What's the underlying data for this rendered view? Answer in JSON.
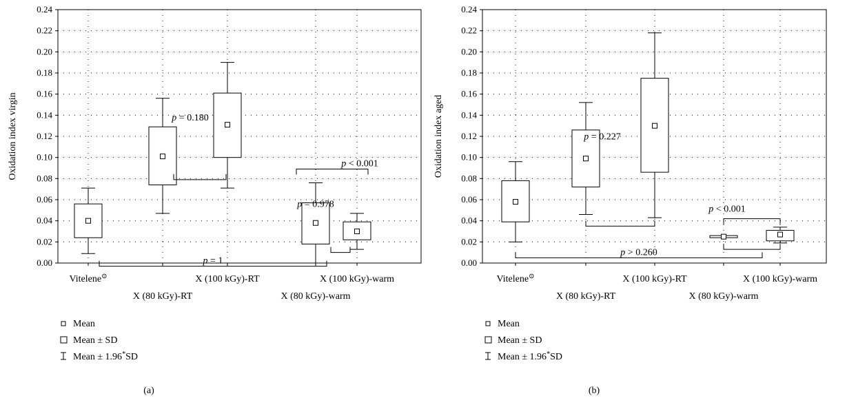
{
  "chart_data": [
    {
      "type": "box",
      "panel_label": "(a)",
      "ylabel": "Oxidation index virgin",
      "ylim": [
        0,
        0.24
      ],
      "ytick_step": 0.02,
      "grid": true,
      "categories": [
        "Vitelene⊙",
        "X (80 kGy)-RT",
        "X (100 kGy)-RT",
        "X (80 kGy)-warm",
        "X (100 kGy)-warm"
      ],
      "category_label_rows": [
        0,
        1,
        0,
        1,
        0
      ],
      "boxes": [
        {
          "mean": 0.04,
          "sd_low": 0.024,
          "sd_high": 0.056,
          "w_low": 0.009,
          "w_high": 0.071
        },
        {
          "mean": 0.101,
          "sd_low": 0.074,
          "sd_high": 0.129,
          "w_low": 0.047,
          "w_high": 0.156
        },
        {
          "mean": 0.131,
          "sd_low": 0.1,
          "sd_high": 0.161,
          "w_low": 0.071,
          "w_high": 0.19
        },
        {
          "mean": 0.038,
          "sd_low": 0.018,
          "sd_high": 0.057,
          "w_low": 0.0,
          "w_high": 0.076
        },
        {
          "mean": 0.03,
          "sd_low": 0.022,
          "sd_high": 0.039,
          "w_low": 0.013,
          "w_high": 0.047
        }
      ],
      "comparisons": [
        {
          "from": 0,
          "to": 3,
          "text": "p = 1"
        },
        {
          "from": 1,
          "to": 2,
          "text": "p = 0.180"
        },
        {
          "from": 3,
          "to": 4,
          "text": "p = 0.978"
        },
        {
          "from": 2,
          "to": 4,
          "text": "p < 0.001"
        }
      ]
    },
    {
      "type": "box",
      "panel_label": "(b)",
      "ylabel": "Oxidation index aged",
      "ylim": [
        0,
        0.24
      ],
      "ytick_step": 0.02,
      "grid": true,
      "categories": [
        "Vitelene⊙",
        "X (80 kGy)-RT",
        "X (100 kGy)-RT",
        "X (80 kGy)-warm",
        "X (100 kGy)-warm"
      ],
      "category_label_rows": [
        0,
        1,
        0,
        1,
        0
      ],
      "boxes": [
        {
          "mean": 0.058,
          "sd_low": 0.039,
          "sd_high": 0.078,
          "w_low": 0.02,
          "w_high": 0.096
        },
        {
          "mean": 0.099,
          "sd_low": 0.072,
          "sd_high": 0.126,
          "w_low": 0.046,
          "w_high": 0.152
        },
        {
          "mean": 0.13,
          "sd_low": 0.086,
          "sd_high": 0.175,
          "w_low": 0.043,
          "w_high": 0.218
        },
        {
          "mean": 0.025,
          "sd_low": 0.024,
          "sd_high": 0.026,
          "w_low": 0.0245,
          "w_high": 0.0255
        },
        {
          "mean": 0.027,
          "sd_low": 0.021,
          "sd_high": 0.031,
          "w_low": 0.019,
          "w_high": 0.034
        }
      ],
      "comparisons": [
        {
          "from": 0,
          "to": 3,
          "text": "p > 0.260"
        },
        {
          "from": 1,
          "to": 2,
          "text": "p = 0.227"
        },
        {
          "from": 3,
          "to": 4,
          "text": ""
        },
        {
          "from": 3,
          "to": 4,
          "text": "p < 0.001"
        }
      ]
    }
  ],
  "legend": [
    {
      "symbol": "□",
      "label": "Mean"
    },
    {
      "symbol": "□",
      "label": "Mean ± SD"
    },
    {
      "symbol": "I",
      "label": "Mean ± 1.96*SD"
    }
  ]
}
